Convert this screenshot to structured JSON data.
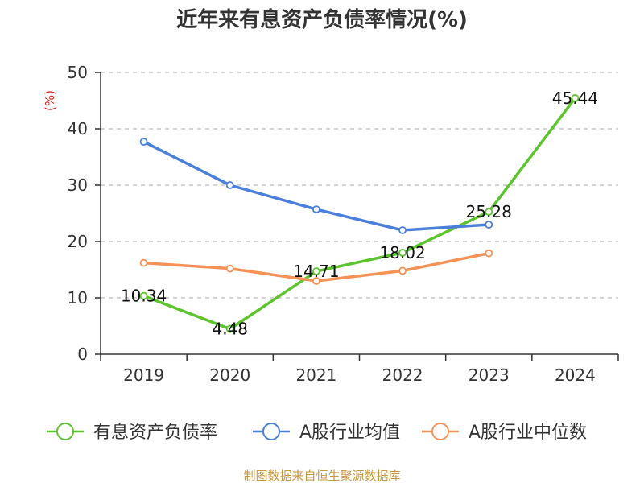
{
  "chart_data": {
    "type": "line",
    "title": "近年来有息资产负债率情况(%)",
    "ylabel": "(%)",
    "ylim": [
      0,
      50
    ],
    "yticks": [
      0,
      10,
      20,
      30,
      40,
      50
    ],
    "categories": [
      "2019",
      "2020",
      "2021",
      "2022",
      "2023",
      "2024"
    ],
    "grid": "horizontal dashed",
    "legend_position": "bottom",
    "series": [
      {
        "name": "有息资产负债率",
        "color": "#5cc42c",
        "values": [
          10.34,
          4.48,
          14.71,
          18.02,
          25.28,
          45.44
        ],
        "labels": [
          "10.34",
          "4.48",
          "14.71",
          "18.02",
          "25.28",
          "45.44"
        ]
      },
      {
        "name": "A股行业均值",
        "color": "#4a7fdb",
        "values": [
          37.7,
          30.0,
          25.7,
          22.0,
          23.0,
          null
        ]
      },
      {
        "name": "A股行业中位数",
        "color": "#f79256",
        "values": [
          16.2,
          15.2,
          13.0,
          14.8,
          17.9,
          null
        ]
      }
    ],
    "source": "制图数据来自恒生聚源数据库"
  }
}
